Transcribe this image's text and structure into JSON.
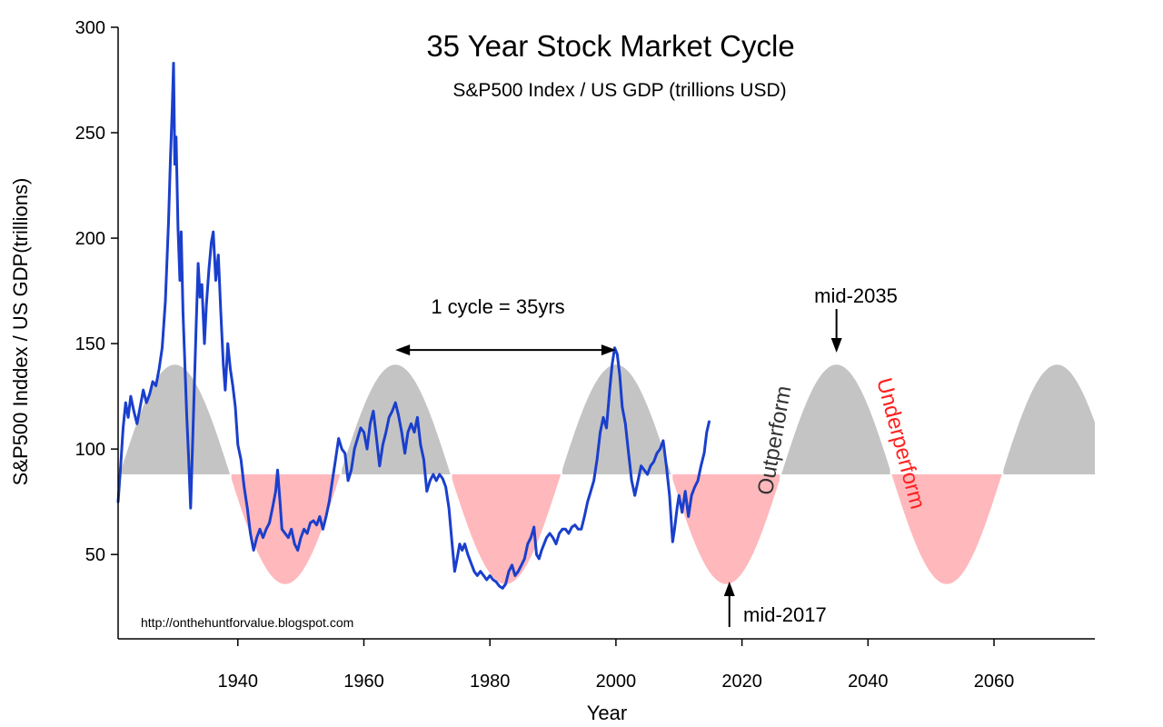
{
  "chart_data": {
    "type": "line",
    "title": "35 Year Stock Market Cycle",
    "subtitle": "S&P500 Index / US GDP (trillions USD)",
    "xlabel": "Year",
    "ylabel": "S&P500 Inddex / US GDP(trillions)",
    "xlim": [
      1921,
      2076
    ],
    "ylim": [
      10,
      300
    ],
    "xticks": [
      1940,
      1960,
      1980,
      2000,
      2020,
      2040,
      2060
    ],
    "yticks": [
      50,
      100,
      150,
      200,
      250,
      300
    ],
    "grid": false,
    "colors": {
      "series": "#1a3fcc",
      "outperform_fill": "#c4c4c4",
      "underperform_fill": "#ffb8bc",
      "underperform_text": "#ff2020"
    },
    "cycle": {
      "baseline": 88,
      "amplitude": 52,
      "period_years": 35,
      "peak_year": 1930,
      "x_range": [
        1921,
        2076
      ]
    },
    "series": [
      {
        "values": [
          [
            1921.0,
            75
          ],
          [
            1921.4,
            92
          ],
          [
            1921.8,
            110
          ],
          [
            1922.2,
            122
          ],
          [
            1922.6,
            115
          ],
          [
            1923.0,
            125
          ],
          [
            1923.5,
            118
          ],
          [
            1924.0,
            112
          ],
          [
            1924.5,
            120
          ],
          [
            1925.0,
            128
          ],
          [
            1925.5,
            122
          ],
          [
            1926.0,
            126
          ],
          [
            1926.5,
            132
          ],
          [
            1927.0,
            130
          ],
          [
            1927.5,
            138
          ],
          [
            1928.0,
            148
          ],
          [
            1928.5,
            170
          ],
          [
            1929.0,
            208
          ],
          [
            1929.3,
            238
          ],
          [
            1929.6,
            262
          ],
          [
            1929.8,
            283
          ],
          [
            1930.0,
            235
          ],
          [
            1930.2,
            248
          ],
          [
            1930.5,
            205
          ],
          [
            1930.8,
            180
          ],
          [
            1931.0,
            203
          ],
          [
            1931.3,
            165
          ],
          [
            1931.6,
            140
          ],
          [
            1931.9,
            115
          ],
          [
            1932.2,
            95
          ],
          [
            1932.5,
            72
          ],
          [
            1932.8,
            100
          ],
          [
            1933.1,
            130
          ],
          [
            1933.4,
            160
          ],
          [
            1933.7,
            188
          ],
          [
            1934.0,
            172
          ],
          [
            1934.3,
            178
          ],
          [
            1934.7,
            150
          ],
          [
            1935.0,
            168
          ],
          [
            1935.4,
            185
          ],
          [
            1935.8,
            198
          ],
          [
            1936.1,
            203
          ],
          [
            1936.5,
            180
          ],
          [
            1936.9,
            192
          ],
          [
            1937.3,
            165
          ],
          [
            1937.7,
            140
          ],
          [
            1938.0,
            128
          ],
          [
            1938.4,
            150
          ],
          [
            1938.8,
            138
          ],
          [
            1939.2,
            130
          ],
          [
            1939.6,
            120
          ],
          [
            1940.0,
            102
          ],
          [
            1940.5,
            95
          ],
          [
            1941.0,
            82
          ],
          [
            1941.5,
            72
          ],
          [
            1942.0,
            60
          ],
          [
            1942.5,
            52
          ],
          [
            1943.0,
            58
          ],
          [
            1943.5,
            62
          ],
          [
            1944.0,
            58
          ],
          [
            1944.5,
            62
          ],
          [
            1945.0,
            65
          ],
          [
            1945.5,
            72
          ],
          [
            1946.0,
            80
          ],
          [
            1946.3,
            90
          ],
          [
            1946.7,
            75
          ],
          [
            1947.0,
            62
          ],
          [
            1947.5,
            60
          ],
          [
            1948.0,
            58
          ],
          [
            1948.5,
            62
          ],
          [
            1949.0,
            55
          ],
          [
            1949.5,
            52
          ],
          [
            1950.0,
            58
          ],
          [
            1950.5,
            62
          ],
          [
            1951.0,
            60
          ],
          [
            1951.5,
            65
          ],
          [
            1952.0,
            66
          ],
          [
            1952.5,
            64
          ],
          [
            1953.0,
            68
          ],
          [
            1953.5,
            62
          ],
          [
            1954.0,
            68
          ],
          [
            1954.5,
            75
          ],
          [
            1955.0,
            85
          ],
          [
            1955.5,
            95
          ],
          [
            1956.0,
            105
          ],
          [
            1956.5,
            100
          ],
          [
            1957.0,
            98
          ],
          [
            1957.5,
            85
          ],
          [
            1958.0,
            90
          ],
          [
            1958.5,
            100
          ],
          [
            1959.0,
            105
          ],
          [
            1959.5,
            110
          ],
          [
            1960.0,
            108
          ],
          [
            1960.5,
            100
          ],
          [
            1961.0,
            112
          ],
          [
            1961.5,
            118
          ],
          [
            1962.0,
            105
          ],
          [
            1962.5,
            92
          ],
          [
            1963.0,
            102
          ],
          [
            1963.5,
            108
          ],
          [
            1964.0,
            115
          ],
          [
            1964.5,
            118
          ],
          [
            1965.0,
            122
          ],
          [
            1965.5,
            116
          ],
          [
            1966.0,
            108
          ],
          [
            1966.5,
            98
          ],
          [
            1967.0,
            108
          ],
          [
            1967.5,
            112
          ],
          [
            1968.0,
            108
          ],
          [
            1968.5,
            115
          ],
          [
            1969.0,
            102
          ],
          [
            1969.5,
            95
          ],
          [
            1970.0,
            80
          ],
          [
            1970.5,
            85
          ],
          [
            1971.0,
            88
          ],
          [
            1971.5,
            85
          ],
          [
            1972.0,
            88
          ],
          [
            1972.5,
            86
          ],
          [
            1973.0,
            82
          ],
          [
            1973.5,
            72
          ],
          [
            1974.0,
            55
          ],
          [
            1974.4,
            42
          ],
          [
            1974.8,
            48
          ],
          [
            1975.2,
            55
          ],
          [
            1975.6,
            52
          ],
          [
            1976.0,
            55
          ],
          [
            1976.5,
            50
          ],
          [
            1977.0,
            46
          ],
          [
            1977.5,
            42
          ],
          [
            1978.0,
            40
          ],
          [
            1978.5,
            42
          ],
          [
            1979.0,
            40
          ],
          [
            1979.5,
            38
          ],
          [
            1980.0,
            40
          ],
          [
            1980.5,
            38
          ],
          [
            1981.0,
            37
          ],
          [
            1981.5,
            35
          ],
          [
            1982.0,
            34
          ],
          [
            1982.5,
            36
          ],
          [
            1983.0,
            42
          ],
          [
            1983.5,
            45
          ],
          [
            1984.0,
            40
          ],
          [
            1984.5,
            42
          ],
          [
            1985.0,
            45
          ],
          [
            1985.5,
            48
          ],
          [
            1986.0,
            55
          ],
          [
            1986.5,
            58
          ],
          [
            1987.0,
            63
          ],
          [
            1987.4,
            50
          ],
          [
            1987.8,
            48
          ],
          [
            1988.2,
            52
          ],
          [
            1988.6,
            55
          ],
          [
            1989.0,
            58
          ],
          [
            1989.5,
            60
          ],
          [
            1990.0,
            58
          ],
          [
            1990.5,
            55
          ],
          [
            1991.0,
            60
          ],
          [
            1991.5,
            62
          ],
          [
            1992.0,
            62
          ],
          [
            1992.5,
            60
          ],
          [
            1993.0,
            63
          ],
          [
            1993.5,
            64
          ],
          [
            1994.0,
            62
          ],
          [
            1994.5,
            62
          ],
          [
            1995.0,
            68
          ],
          [
            1995.5,
            75
          ],
          [
            1996.0,
            80
          ],
          [
            1996.5,
            85
          ],
          [
            1997.0,
            95
          ],
          [
            1997.5,
            108
          ],
          [
            1998.0,
            115
          ],
          [
            1998.5,
            110
          ],
          [
            1999.0,
            128
          ],
          [
            1999.4,
            140
          ],
          [
            1999.8,
            148
          ],
          [
            2000.2,
            145
          ],
          [
            2000.6,
            135
          ],
          [
            2001.0,
            120
          ],
          [
            2001.5,
            112
          ],
          [
            2002.0,
            98
          ],
          [
            2002.5,
            85
          ],
          [
            2003.0,
            78
          ],
          [
            2003.5,
            85
          ],
          [
            2004.0,
            92
          ],
          [
            2004.5,
            90
          ],
          [
            2005.0,
            88
          ],
          [
            2005.5,
            92
          ],
          [
            2006.0,
            94
          ],
          [
            2006.5,
            98
          ],
          [
            2007.0,
            100
          ],
          [
            2007.5,
            104
          ],
          [
            2008.0,
            92
          ],
          [
            2008.5,
            78
          ],
          [
            2009.0,
            56
          ],
          [
            2009.3,
            62
          ],
          [
            2009.7,
            72
          ],
          [
            2010.0,
            78
          ],
          [
            2010.5,
            70
          ],
          [
            2011.0,
            80
          ],
          [
            2011.5,
            68
          ],
          [
            2012.0,
            78
          ],
          [
            2012.5,
            82
          ],
          [
            2013.0,
            85
          ],
          [
            2013.5,
            92
          ],
          [
            2014.0,
            98
          ],
          [
            2014.4,
            108
          ],
          [
            2014.8,
            113
          ]
        ]
      }
    ],
    "annotations": {
      "cycle_label": "1 cycle = 35yrs",
      "cycle_span": [
        1965,
        2000
      ],
      "peak_label": "mid-2035",
      "peak_year": 2035,
      "trough_label": "mid-2017",
      "trough_year": 2018,
      "outperform_label": "Outperform",
      "underperform_label": "Underperform"
    },
    "credit": "http://onthehuntforvalue.blogspot.com"
  }
}
